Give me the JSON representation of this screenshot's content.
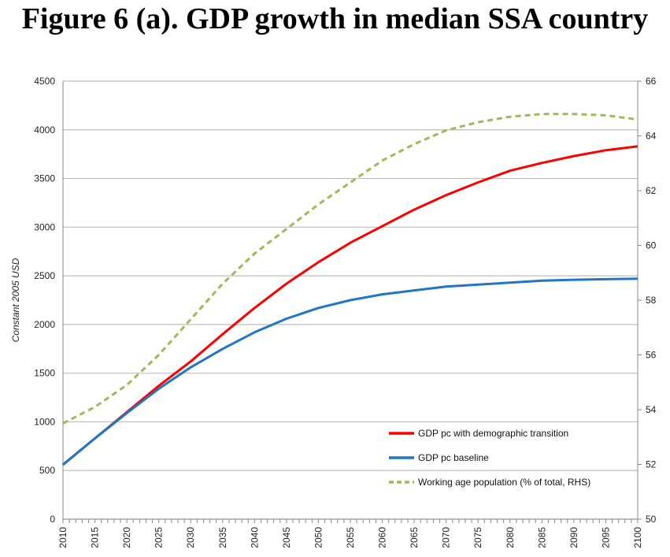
{
  "title": "Figure 6 (a). GDP growth in median SSA country",
  "chart_data": {
    "type": "line",
    "title": "Figure 6 (a). GDP growth in median SSA country",
    "xlabel": "",
    "ylabel": "Constant 2005 USD",
    "y2label": "",
    "x": [
      2010,
      2015,
      2020,
      2025,
      2030,
      2035,
      2040,
      2045,
      2050,
      2055,
      2060,
      2065,
      2070,
      2075,
      2080,
      2085,
      2090,
      2095,
      2100
    ],
    "xlim": [
      2010,
      2100
    ],
    "ylim": [
      0,
      4500
    ],
    "y2lim": [
      50,
      66
    ],
    "xticks": [
      "2010",
      "2015",
      "2020",
      "2025",
      "2030",
      "2035",
      "2040",
      "2045",
      "2050",
      "2055",
      "2060",
      "2065",
      "2070",
      "2075",
      "2080",
      "2085",
      "2090",
      "2095",
      "2100"
    ],
    "yticks": [
      "0",
      "500",
      "1000",
      "1500",
      "2000",
      "2500",
      "3000",
      "3500",
      "4000",
      "4500"
    ],
    "y2ticks": [
      "50",
      "52",
      "54",
      "56",
      "58",
      "60",
      "62",
      "64",
      "66"
    ],
    "grid": true,
    "legend_placement": "bottom-right",
    "series": [
      {
        "name": "GDP pc with demographic transition",
        "axis": "left",
        "color": "#ff0000",
        "style": "solid",
        "values": [
          560,
          830,
          1100,
          1370,
          1620,
          1900,
          2170,
          2420,
          2640,
          2840,
          3010,
          3180,
          3330,
          3460,
          3580,
          3660,
          3730,
          3790,
          3830
        ]
      },
      {
        "name": "GDP pc baseline",
        "axis": "left",
        "color": "#1f77c4",
        "style": "solid",
        "values": [
          560,
          830,
          1090,
          1340,
          1560,
          1750,
          1920,
          2060,
          2170,
          2250,
          2310,
          2350,
          2390,
          2410,
          2430,
          2450,
          2460,
          2465,
          2470
        ]
      },
      {
        "name": "Working age population (% of total, RHS)",
        "axis": "right",
        "color": "#9bbb59",
        "style": "dashed",
        "values": [
          53.5,
          54.1,
          54.9,
          56.0,
          57.3,
          58.6,
          59.7,
          60.6,
          61.5,
          62.3,
          63.1,
          63.7,
          64.2,
          64.5,
          64.7,
          64.8,
          64.8,
          64.75,
          64.6
        ]
      }
    ]
  }
}
